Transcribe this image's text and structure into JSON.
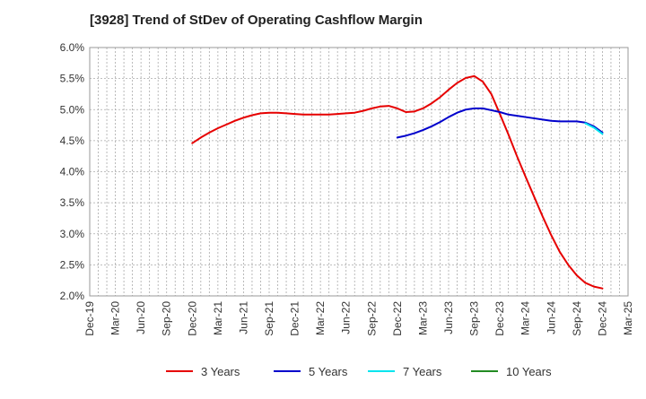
{
  "chart_data": {
    "type": "line",
    "title": "[3928]  Trend of StDev of Operating Cashflow Margin",
    "xlabel": "",
    "ylabel": "",
    "x_ticks": [
      "Dec-19",
      "Mar-20",
      "Jun-20",
      "Sep-20",
      "Dec-20",
      "Mar-21",
      "Jun-21",
      "Sep-21",
      "Dec-21",
      "Mar-22",
      "Jun-22",
      "Sep-22",
      "Dec-22",
      "Mar-23",
      "Jun-23",
      "Sep-23",
      "Dec-23",
      "Mar-24",
      "Jun-24",
      "Sep-24",
      "Dec-24",
      "Mar-25"
    ],
    "y_ticks": [
      "2.0%",
      "2.5%",
      "3.0%",
      "3.5%",
      "4.0%",
      "4.5%",
      "5.0%",
      "5.5%",
      "6.0%"
    ],
    "ylim": [
      2.0,
      6.0
    ],
    "grid": true,
    "legend_position": "bottom",
    "series": [
      {
        "name": "3 Years",
        "color": "#e60000",
        "points": [
          [
            "Dec-20",
            4.46
          ],
          [
            "Jan-21",
            4.55
          ],
          [
            "Feb-21",
            4.63
          ],
          [
            "Mar-21",
            4.7
          ],
          [
            "Apr-21",
            4.76
          ],
          [
            "May-21",
            4.82
          ],
          [
            "Jun-21",
            4.87
          ],
          [
            "Jul-21",
            4.91
          ],
          [
            "Aug-21",
            4.94
          ],
          [
            "Sep-21",
            4.95
          ],
          [
            "Oct-21",
            4.95
          ],
          [
            "Nov-21",
            4.94
          ],
          [
            "Dec-21",
            4.93
          ],
          [
            "Jan-22",
            4.92
          ],
          [
            "Feb-22",
            4.92
          ],
          [
            "Mar-22",
            4.92
          ],
          [
            "Apr-22",
            4.92
          ],
          [
            "May-22",
            4.93
          ],
          [
            "Jun-22",
            4.94
          ],
          [
            "Jul-22",
            4.95
          ],
          [
            "Aug-22",
            4.98
          ],
          [
            "Sep-22",
            5.02
          ],
          [
            "Oct-22",
            5.05
          ],
          [
            "Nov-22",
            5.06
          ],
          [
            "Dec-22",
            5.02
          ],
          [
            "Jan-23",
            4.96
          ],
          [
            "Feb-23",
            4.97
          ],
          [
            "Mar-23",
            5.02
          ],
          [
            "Apr-23",
            5.1
          ],
          [
            "May-23",
            5.2
          ],
          [
            "Jun-23",
            5.32
          ],
          [
            "Jul-23",
            5.43
          ],
          [
            "Aug-23",
            5.51
          ],
          [
            "Sep-23",
            5.54
          ],
          [
            "Oct-23",
            5.45
          ],
          [
            "Nov-23",
            5.25
          ],
          [
            "Dec-23",
            4.93
          ],
          [
            "Jan-24",
            4.6
          ],
          [
            "Feb-24",
            4.25
          ],
          [
            "Mar-24",
            3.92
          ],
          [
            "Apr-24",
            3.6
          ],
          [
            "May-24",
            3.28
          ],
          [
            "Jun-24",
            2.98
          ],
          [
            "Jul-24",
            2.71
          ],
          [
            "Aug-24",
            2.5
          ],
          [
            "Sep-24",
            2.33
          ],
          [
            "Oct-24",
            2.21
          ],
          [
            "Nov-24",
            2.15
          ],
          [
            "Dec-24",
            2.12
          ]
        ]
      },
      {
        "name": "5 Years",
        "color": "#0000cc",
        "points": [
          [
            "Dec-22",
            4.55
          ],
          [
            "Jan-23",
            4.58
          ],
          [
            "Feb-23",
            4.62
          ],
          [
            "Mar-23",
            4.67
          ],
          [
            "Apr-23",
            4.73
          ],
          [
            "May-23",
            4.8
          ],
          [
            "Jun-23",
            4.88
          ],
          [
            "Jul-23",
            4.95
          ],
          [
            "Aug-23",
            5.0
          ],
          [
            "Sep-23",
            5.02
          ],
          [
            "Oct-23",
            5.02
          ],
          [
            "Nov-23",
            4.99
          ],
          [
            "Dec-23",
            4.96
          ],
          [
            "Jan-24",
            4.92
          ],
          [
            "Feb-24",
            4.9
          ],
          [
            "Mar-24",
            4.88
          ],
          [
            "Apr-24",
            4.86
          ],
          [
            "May-24",
            4.84
          ],
          [
            "Jun-24",
            4.82
          ],
          [
            "Jul-24",
            4.81
          ],
          [
            "Aug-24",
            4.81
          ],
          [
            "Sep-24",
            4.81
          ],
          [
            "Oct-24",
            4.79
          ],
          [
            "Nov-24",
            4.73
          ],
          [
            "Dec-24",
            4.63
          ]
        ]
      },
      {
        "name": "7 Years",
        "color": "#00e5ee",
        "points": [
          [
            "Oct-24",
            4.78
          ],
          [
            "Nov-24",
            4.71
          ],
          [
            "Dec-24",
            4.61
          ]
        ]
      },
      {
        "name": "10 Years",
        "color": "#228b22",
        "points": []
      }
    ]
  }
}
